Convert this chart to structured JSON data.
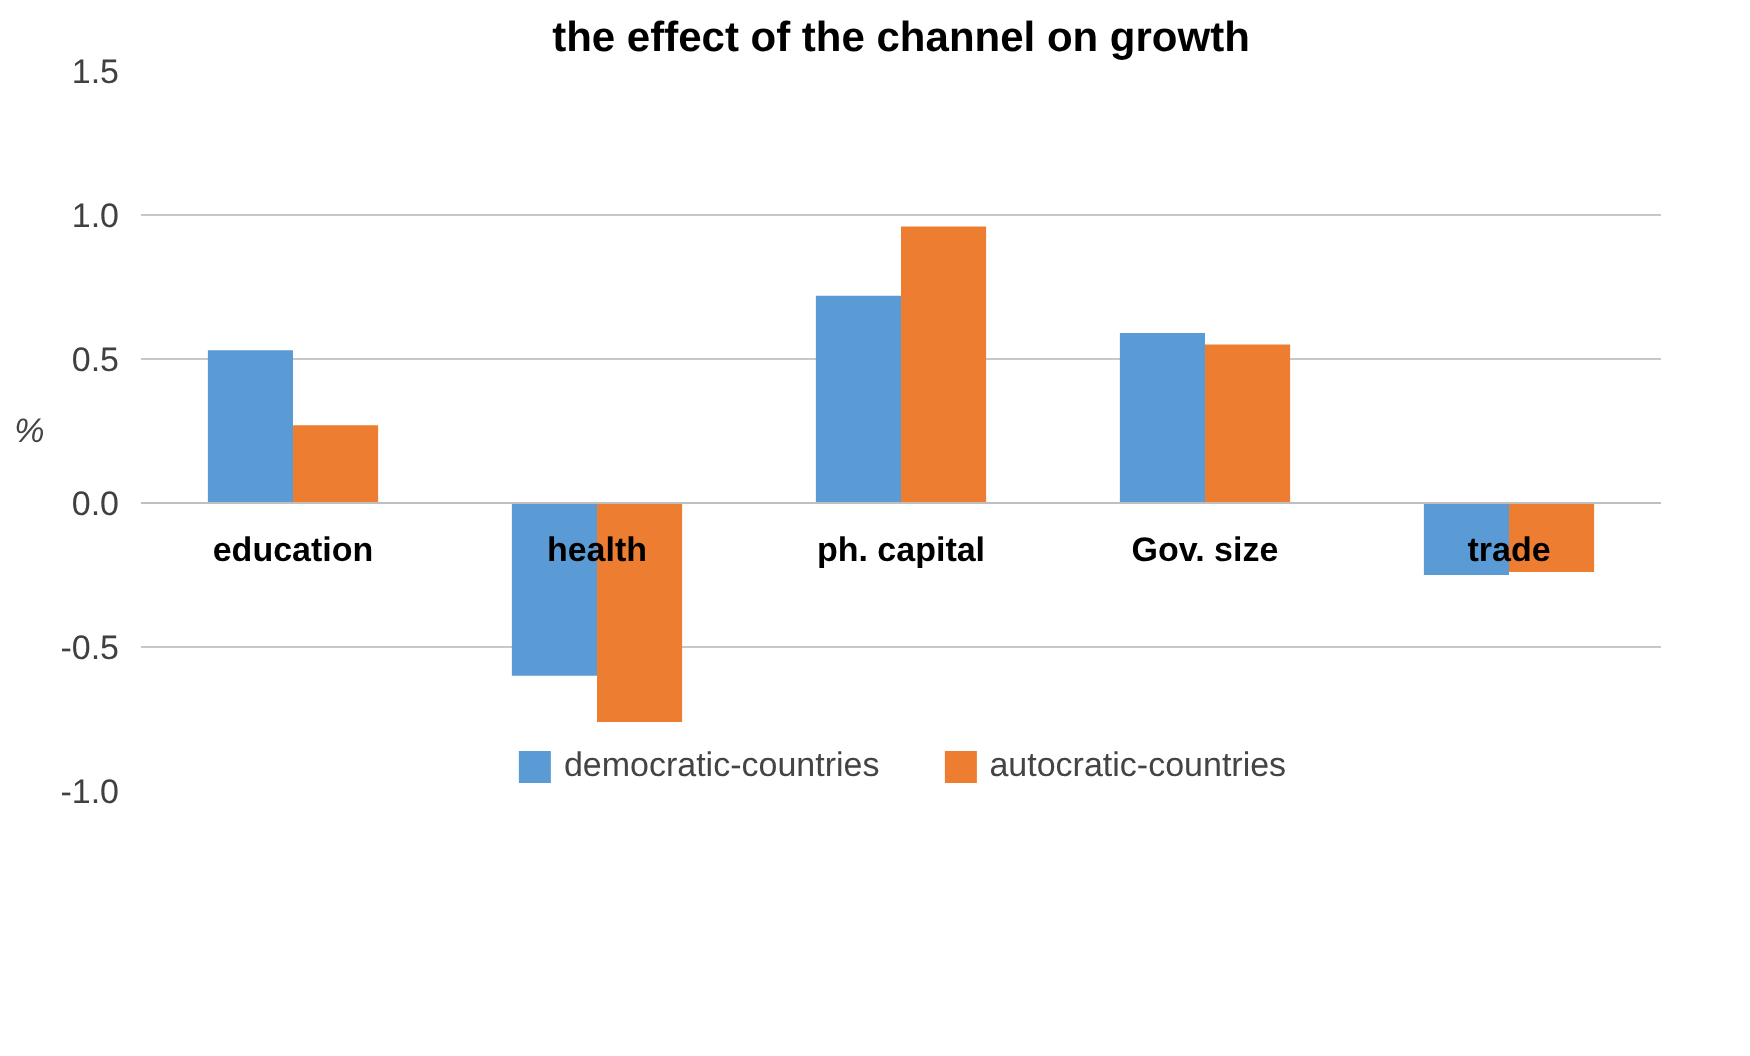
{
  "chart_data": {
    "type": "bar",
    "title": "the effect of the channel on growth",
    "ylabel": "%",
    "categories": [
      "education",
      "health",
      "ph. capital",
      "Gov. size",
      "trade"
    ],
    "series": [
      {
        "name": "democratic-countries",
        "color": "#5b9bd5",
        "values": [
          0.53,
          -0.6,
          0.72,
          0.59,
          -0.25
        ]
      },
      {
        "name": "autocratic-countries",
        "color": "#ed7d31",
        "values": [
          0.27,
          -0.76,
          0.96,
          0.55,
          -0.24
        ]
      }
    ],
    "ylim": [
      -1.0,
      1.5
    ],
    "yticks": [
      {
        "value": -1.0,
        "label": "-1.0"
      },
      {
        "value": -0.5,
        "label": "-0.5"
      },
      {
        "value": 0,
        "label": "0.0"
      },
      {
        "value": 0.5,
        "label": "0.5"
      },
      {
        "value": 1.0,
        "label": "1.0"
      },
      {
        "value": 1.5,
        "label": "1.5"
      }
    ],
    "grid": "y",
    "legend": "bottom"
  }
}
